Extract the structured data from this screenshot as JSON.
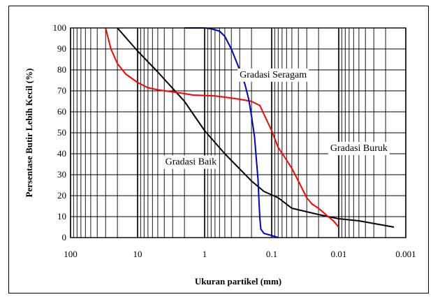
{
  "chart_data": {
    "type": "line",
    "title": "",
    "xlabel": "Ukuran partikel (mm)",
    "ylabel": "Persentase Butir Lebih Kecil (%)",
    "x_scale": "log",
    "x_reversed": true,
    "xlim": [
      100,
      0.001
    ],
    "ylim": [
      0,
      100
    ],
    "xticks": [
      100,
      10,
      1,
      0.1,
      0.01,
      0.001
    ],
    "xtick_labels": [
      "100",
      "10",
      "1",
      "0.1",
      "0.01",
      "0.001"
    ],
    "yticks": [
      0,
      10,
      20,
      30,
      40,
      50,
      60,
      70,
      80,
      90,
      100
    ],
    "ytick_labels": [
      "0",
      "10",
      "20",
      "30",
      "40",
      "50",
      "60",
      "70",
      "80",
      "90",
      "100"
    ],
    "grid": true,
    "series": [
      {
        "name": "Gradasi Baik",
        "color": "#000000",
        "points": [
          [
            20,
            100
          ],
          [
            10,
            89
          ],
          [
            5,
            79
          ],
          [
            2,
            65
          ],
          [
            1,
            51
          ],
          [
            0.5,
            40
          ],
          [
            0.2,
            27
          ],
          [
            0.13,
            22
          ],
          [
            0.08,
            19
          ],
          [
            0.05,
            14
          ],
          [
            0.02,
            11
          ],
          [
            0.01,
            9
          ],
          [
            0.005,
            8
          ],
          [
            0.0015,
            5
          ]
        ]
      },
      {
        "name": "Gradasi Buruk",
        "color": "#ff0000",
        "points": [
          [
            30,
            100
          ],
          [
            25,
            90
          ],
          [
            20,
            83
          ],
          [
            15,
            78
          ],
          [
            10,
            74
          ],
          [
            7,
            71.5
          ],
          [
            5,
            70.5
          ],
          [
            3,
            69.5
          ],
          [
            2,
            68.7
          ],
          [
            1.5,
            68
          ],
          [
            1,
            67.8
          ],
          [
            0.7,
            67.6
          ],
          [
            0.5,
            67
          ],
          [
            0.3,
            66
          ],
          [
            0.2,
            65
          ],
          [
            0.15,
            63
          ],
          [
            0.1,
            51
          ],
          [
            0.08,
            43
          ],
          [
            0.06,
            37
          ],
          [
            0.05,
            33
          ],
          [
            0.04,
            27
          ],
          [
            0.03,
            19
          ],
          [
            0.025,
            16
          ],
          [
            0.02,
            14
          ],
          [
            0.015,
            10.5
          ],
          [
            0.012,
            8
          ],
          [
            0.01,
            5
          ]
        ]
      },
      {
        "name": "Gradasi Seragam",
        "color": "#0000cc",
        "points": [
          [
            2,
            100
          ],
          [
            1,
            100
          ],
          [
            0.8,
            99.6
          ],
          [
            0.6,
            98.5
          ],
          [
            0.5,
            96
          ],
          [
            0.4,
            90
          ],
          [
            0.3,
            80
          ],
          [
            0.25,
            73
          ],
          [
            0.22,
            66
          ],
          [
            0.2,
            58
          ],
          [
            0.18,
            48
          ],
          [
            0.17,
            38
          ],
          [
            0.16,
            28
          ],
          [
            0.155,
            18
          ],
          [
            0.15,
            9
          ],
          [
            0.145,
            4
          ],
          [
            0.13,
            2
          ],
          [
            0.1,
            1
          ],
          [
            0.08,
            0
          ]
        ]
      }
    ],
    "annotations": [
      {
        "text": "Gradasi Seragam",
        "x": 0.095,
        "y": 78
      },
      {
        "text": "Gradasi Buruk",
        "x": 0.005,
        "y": 43
      },
      {
        "text": "Gradasi Baik",
        "x": 1.6,
        "y": 36.5
      }
    ]
  }
}
